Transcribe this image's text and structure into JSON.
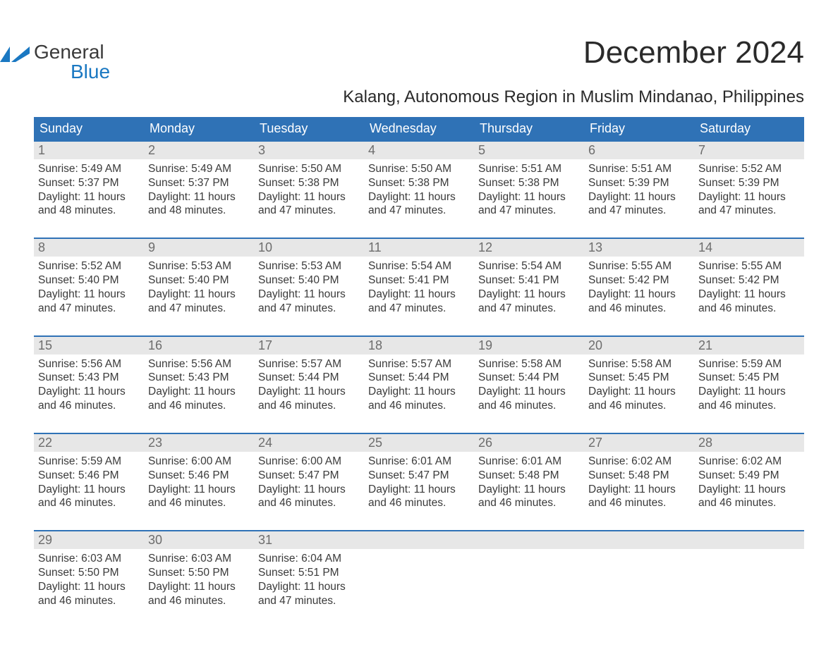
{
  "brand": {
    "word1": "General",
    "word2": "Blue",
    "accent_color": "#1a78c2"
  },
  "title": "December 2024",
  "location": "Kalang, Autonomous Region in Muslim Mindanao, Philippines",
  "colors": {
    "header_bg": "#2f72b6",
    "header_text": "#ffffff",
    "daynum_bg": "#e7e7e7",
    "daynum_text": "#6d6d6d",
    "body_text": "#3a3a3a",
    "week_divider": "#2f72b6",
    "page_bg": "#ffffff"
  },
  "weekdays": [
    "Sunday",
    "Monday",
    "Tuesday",
    "Wednesday",
    "Thursday",
    "Friday",
    "Saturday"
  ],
  "weeks": [
    [
      {
        "n": "1",
        "sr": "Sunrise: 5:49 AM",
        "ss": "Sunset: 5:37 PM",
        "d1": "Daylight: 11 hours",
        "d2": "and 48 minutes."
      },
      {
        "n": "2",
        "sr": "Sunrise: 5:49 AM",
        "ss": "Sunset: 5:37 PM",
        "d1": "Daylight: 11 hours",
        "d2": "and 48 minutes."
      },
      {
        "n": "3",
        "sr": "Sunrise: 5:50 AM",
        "ss": "Sunset: 5:38 PM",
        "d1": "Daylight: 11 hours",
        "d2": "and 47 minutes."
      },
      {
        "n": "4",
        "sr": "Sunrise: 5:50 AM",
        "ss": "Sunset: 5:38 PM",
        "d1": "Daylight: 11 hours",
        "d2": "and 47 minutes."
      },
      {
        "n": "5",
        "sr": "Sunrise: 5:51 AM",
        "ss": "Sunset: 5:38 PM",
        "d1": "Daylight: 11 hours",
        "d2": "and 47 minutes."
      },
      {
        "n": "6",
        "sr": "Sunrise: 5:51 AM",
        "ss": "Sunset: 5:39 PM",
        "d1": "Daylight: 11 hours",
        "d2": "and 47 minutes."
      },
      {
        "n": "7",
        "sr": "Sunrise: 5:52 AM",
        "ss": "Sunset: 5:39 PM",
        "d1": "Daylight: 11 hours",
        "d2": "and 47 minutes."
      }
    ],
    [
      {
        "n": "8",
        "sr": "Sunrise: 5:52 AM",
        "ss": "Sunset: 5:40 PM",
        "d1": "Daylight: 11 hours",
        "d2": "and 47 minutes."
      },
      {
        "n": "9",
        "sr": "Sunrise: 5:53 AM",
        "ss": "Sunset: 5:40 PM",
        "d1": "Daylight: 11 hours",
        "d2": "and 47 minutes."
      },
      {
        "n": "10",
        "sr": "Sunrise: 5:53 AM",
        "ss": "Sunset: 5:40 PM",
        "d1": "Daylight: 11 hours",
        "d2": "and 47 minutes."
      },
      {
        "n": "11",
        "sr": "Sunrise: 5:54 AM",
        "ss": "Sunset: 5:41 PM",
        "d1": "Daylight: 11 hours",
        "d2": "and 47 minutes."
      },
      {
        "n": "12",
        "sr": "Sunrise: 5:54 AM",
        "ss": "Sunset: 5:41 PM",
        "d1": "Daylight: 11 hours",
        "d2": "and 47 minutes."
      },
      {
        "n": "13",
        "sr": "Sunrise: 5:55 AM",
        "ss": "Sunset: 5:42 PM",
        "d1": "Daylight: 11 hours",
        "d2": "and 46 minutes."
      },
      {
        "n": "14",
        "sr": "Sunrise: 5:55 AM",
        "ss": "Sunset: 5:42 PM",
        "d1": "Daylight: 11 hours",
        "d2": "and 46 minutes."
      }
    ],
    [
      {
        "n": "15",
        "sr": "Sunrise: 5:56 AM",
        "ss": "Sunset: 5:43 PM",
        "d1": "Daylight: 11 hours",
        "d2": "and 46 minutes."
      },
      {
        "n": "16",
        "sr": "Sunrise: 5:56 AM",
        "ss": "Sunset: 5:43 PM",
        "d1": "Daylight: 11 hours",
        "d2": "and 46 minutes."
      },
      {
        "n": "17",
        "sr": "Sunrise: 5:57 AM",
        "ss": "Sunset: 5:44 PM",
        "d1": "Daylight: 11 hours",
        "d2": "and 46 minutes."
      },
      {
        "n": "18",
        "sr": "Sunrise: 5:57 AM",
        "ss": "Sunset: 5:44 PM",
        "d1": "Daylight: 11 hours",
        "d2": "and 46 minutes."
      },
      {
        "n": "19",
        "sr": "Sunrise: 5:58 AM",
        "ss": "Sunset: 5:44 PM",
        "d1": "Daylight: 11 hours",
        "d2": "and 46 minutes."
      },
      {
        "n": "20",
        "sr": "Sunrise: 5:58 AM",
        "ss": "Sunset: 5:45 PM",
        "d1": "Daylight: 11 hours",
        "d2": "and 46 minutes."
      },
      {
        "n": "21",
        "sr": "Sunrise: 5:59 AM",
        "ss": "Sunset: 5:45 PM",
        "d1": "Daylight: 11 hours",
        "d2": "and 46 minutes."
      }
    ],
    [
      {
        "n": "22",
        "sr": "Sunrise: 5:59 AM",
        "ss": "Sunset: 5:46 PM",
        "d1": "Daylight: 11 hours",
        "d2": "and 46 minutes."
      },
      {
        "n": "23",
        "sr": "Sunrise: 6:00 AM",
        "ss": "Sunset: 5:46 PM",
        "d1": "Daylight: 11 hours",
        "d2": "and 46 minutes."
      },
      {
        "n": "24",
        "sr": "Sunrise: 6:00 AM",
        "ss": "Sunset: 5:47 PM",
        "d1": "Daylight: 11 hours",
        "d2": "and 46 minutes."
      },
      {
        "n": "25",
        "sr": "Sunrise: 6:01 AM",
        "ss": "Sunset: 5:47 PM",
        "d1": "Daylight: 11 hours",
        "d2": "and 46 minutes."
      },
      {
        "n": "26",
        "sr": "Sunrise: 6:01 AM",
        "ss": "Sunset: 5:48 PM",
        "d1": "Daylight: 11 hours",
        "d2": "and 46 minutes."
      },
      {
        "n": "27",
        "sr": "Sunrise: 6:02 AM",
        "ss": "Sunset: 5:48 PM",
        "d1": "Daylight: 11 hours",
        "d2": "and 46 minutes."
      },
      {
        "n": "28",
        "sr": "Sunrise: 6:02 AM",
        "ss": "Sunset: 5:49 PM",
        "d1": "Daylight: 11 hours",
        "d2": "and 46 minutes."
      }
    ],
    [
      {
        "n": "29",
        "sr": "Sunrise: 6:03 AM",
        "ss": "Sunset: 5:50 PM",
        "d1": "Daylight: 11 hours",
        "d2": "and 46 minutes."
      },
      {
        "n": "30",
        "sr": "Sunrise: 6:03 AM",
        "ss": "Sunset: 5:50 PM",
        "d1": "Daylight: 11 hours",
        "d2": "and 46 minutes."
      },
      {
        "n": "31",
        "sr": "Sunrise: 6:04 AM",
        "ss": "Sunset: 5:51 PM",
        "d1": "Daylight: 11 hours",
        "d2": "and 47 minutes."
      },
      {
        "empty": true
      },
      {
        "empty": true
      },
      {
        "empty": true
      },
      {
        "empty": true
      }
    ]
  ]
}
